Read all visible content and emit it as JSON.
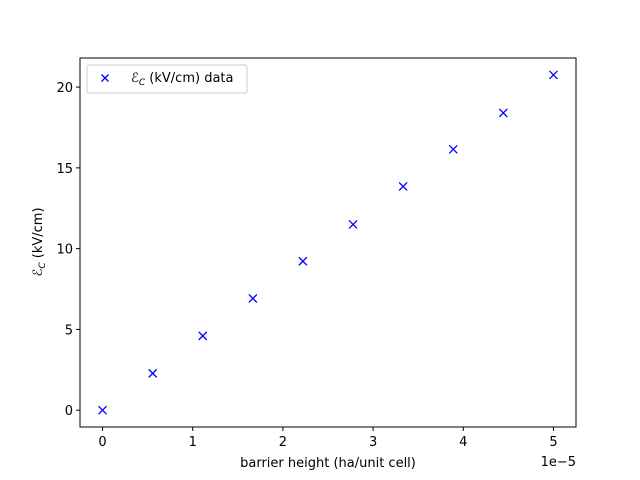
{
  "chart_data": {
    "type": "scatter",
    "title": "",
    "xlabel": "barrier height (ha/unit cell)",
    "ylabel": "ℰ_C (kV/cm)",
    "x_offset_label": "1e−5",
    "xlim": [
      -2.5e-06,
      5.25e-05
    ],
    "ylim": [
      -1.04,
      21.8
    ],
    "x_ticks": [
      0,
      1e-05,
      2e-05,
      3e-05,
      4e-05,
      5e-05
    ],
    "x_tick_labels": [
      "0",
      "1",
      "2",
      "3",
      "4",
      "5"
    ],
    "y_ticks": [
      0,
      5,
      10,
      15,
      20
    ],
    "y_tick_labels": [
      "0",
      "5",
      "10",
      "15",
      "20"
    ],
    "grid": false,
    "legend_position": "upper-left",
    "series": [
      {
        "name": "ℰ_C (kV/cm) data",
        "marker": "x",
        "color": "#0000ff",
        "x": [
          0,
          5.56e-06,
          1.111e-05,
          1.667e-05,
          2.222e-05,
          2.778e-05,
          3.333e-05,
          3.889e-05,
          4.444e-05,
          5e-05
        ],
        "y": [
          0.0,
          2.28,
          4.6,
          6.92,
          9.22,
          11.5,
          13.85,
          16.15,
          18.4,
          20.75
        ]
      }
    ]
  }
}
